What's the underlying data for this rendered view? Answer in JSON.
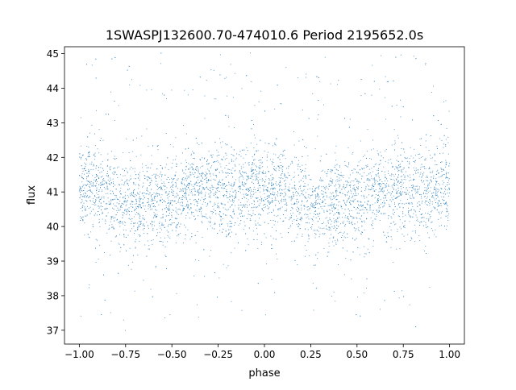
{
  "chart_data": {
    "type": "scatter",
    "title": "1SWASPJ132600.70-474010.6 Period 2195652.0s",
    "xlabel": "phase",
    "ylabel": "flux",
    "xlim": [
      -1.08,
      1.08
    ],
    "ylim": [
      36.6,
      45.2
    ],
    "xticks": [
      -1.0,
      -0.75,
      -0.5,
      -0.25,
      0.0,
      0.25,
      0.5,
      0.75,
      1.0
    ],
    "xtick_labels": [
      "−1.00",
      "−0.75",
      "−0.50",
      "−0.25",
      "0.00",
      "0.25",
      "0.50",
      "0.75",
      "1.00"
    ],
    "yticks": [
      37,
      38,
      39,
      40,
      41,
      42,
      43,
      44,
      45
    ],
    "ytick_labels": [
      "37",
      "38",
      "39",
      "40",
      "41",
      "42",
      "43",
      "44",
      "45"
    ],
    "grid": false,
    "legend": "none",
    "marker_color": "#1f77b4",
    "trend": {
      "phase": [
        -1.0,
        -0.95,
        -0.9,
        -0.85,
        -0.8,
        -0.75,
        -0.7,
        -0.65,
        -0.6,
        -0.55,
        -0.5,
        -0.45,
        -0.4,
        -0.35,
        -0.3,
        -0.25,
        -0.2,
        -0.15,
        -0.1,
        -0.05,
        0.0,
        0.05,
        0.1,
        0.15,
        0.2,
        0.25,
        0.3,
        0.35,
        0.4,
        0.45,
        0.5,
        0.55,
        0.6,
        0.65,
        0.7,
        0.75,
        0.8,
        0.85,
        0.9,
        0.95,
        1.0
      ],
      "flux_mean": [
        41.0,
        41.2,
        41.0,
        40.8,
        40.7,
        40.6,
        40.6,
        40.8,
        40.7,
        40.6,
        40.6,
        40.8,
        41.0,
        41.0,
        41.0,
        41.1,
        41.0,
        40.9,
        41.0,
        41.2,
        41.1,
        41.0,
        41.0,
        40.8,
        40.7,
        40.6,
        40.8,
        40.6,
        40.6,
        40.6,
        40.7,
        40.9,
        41.0,
        41.0,
        41.0,
        41.1,
        41.0,
        40.9,
        41.0,
        41.2,
        41.0
      ],
      "flux_spread": 0.65
    }
  }
}
